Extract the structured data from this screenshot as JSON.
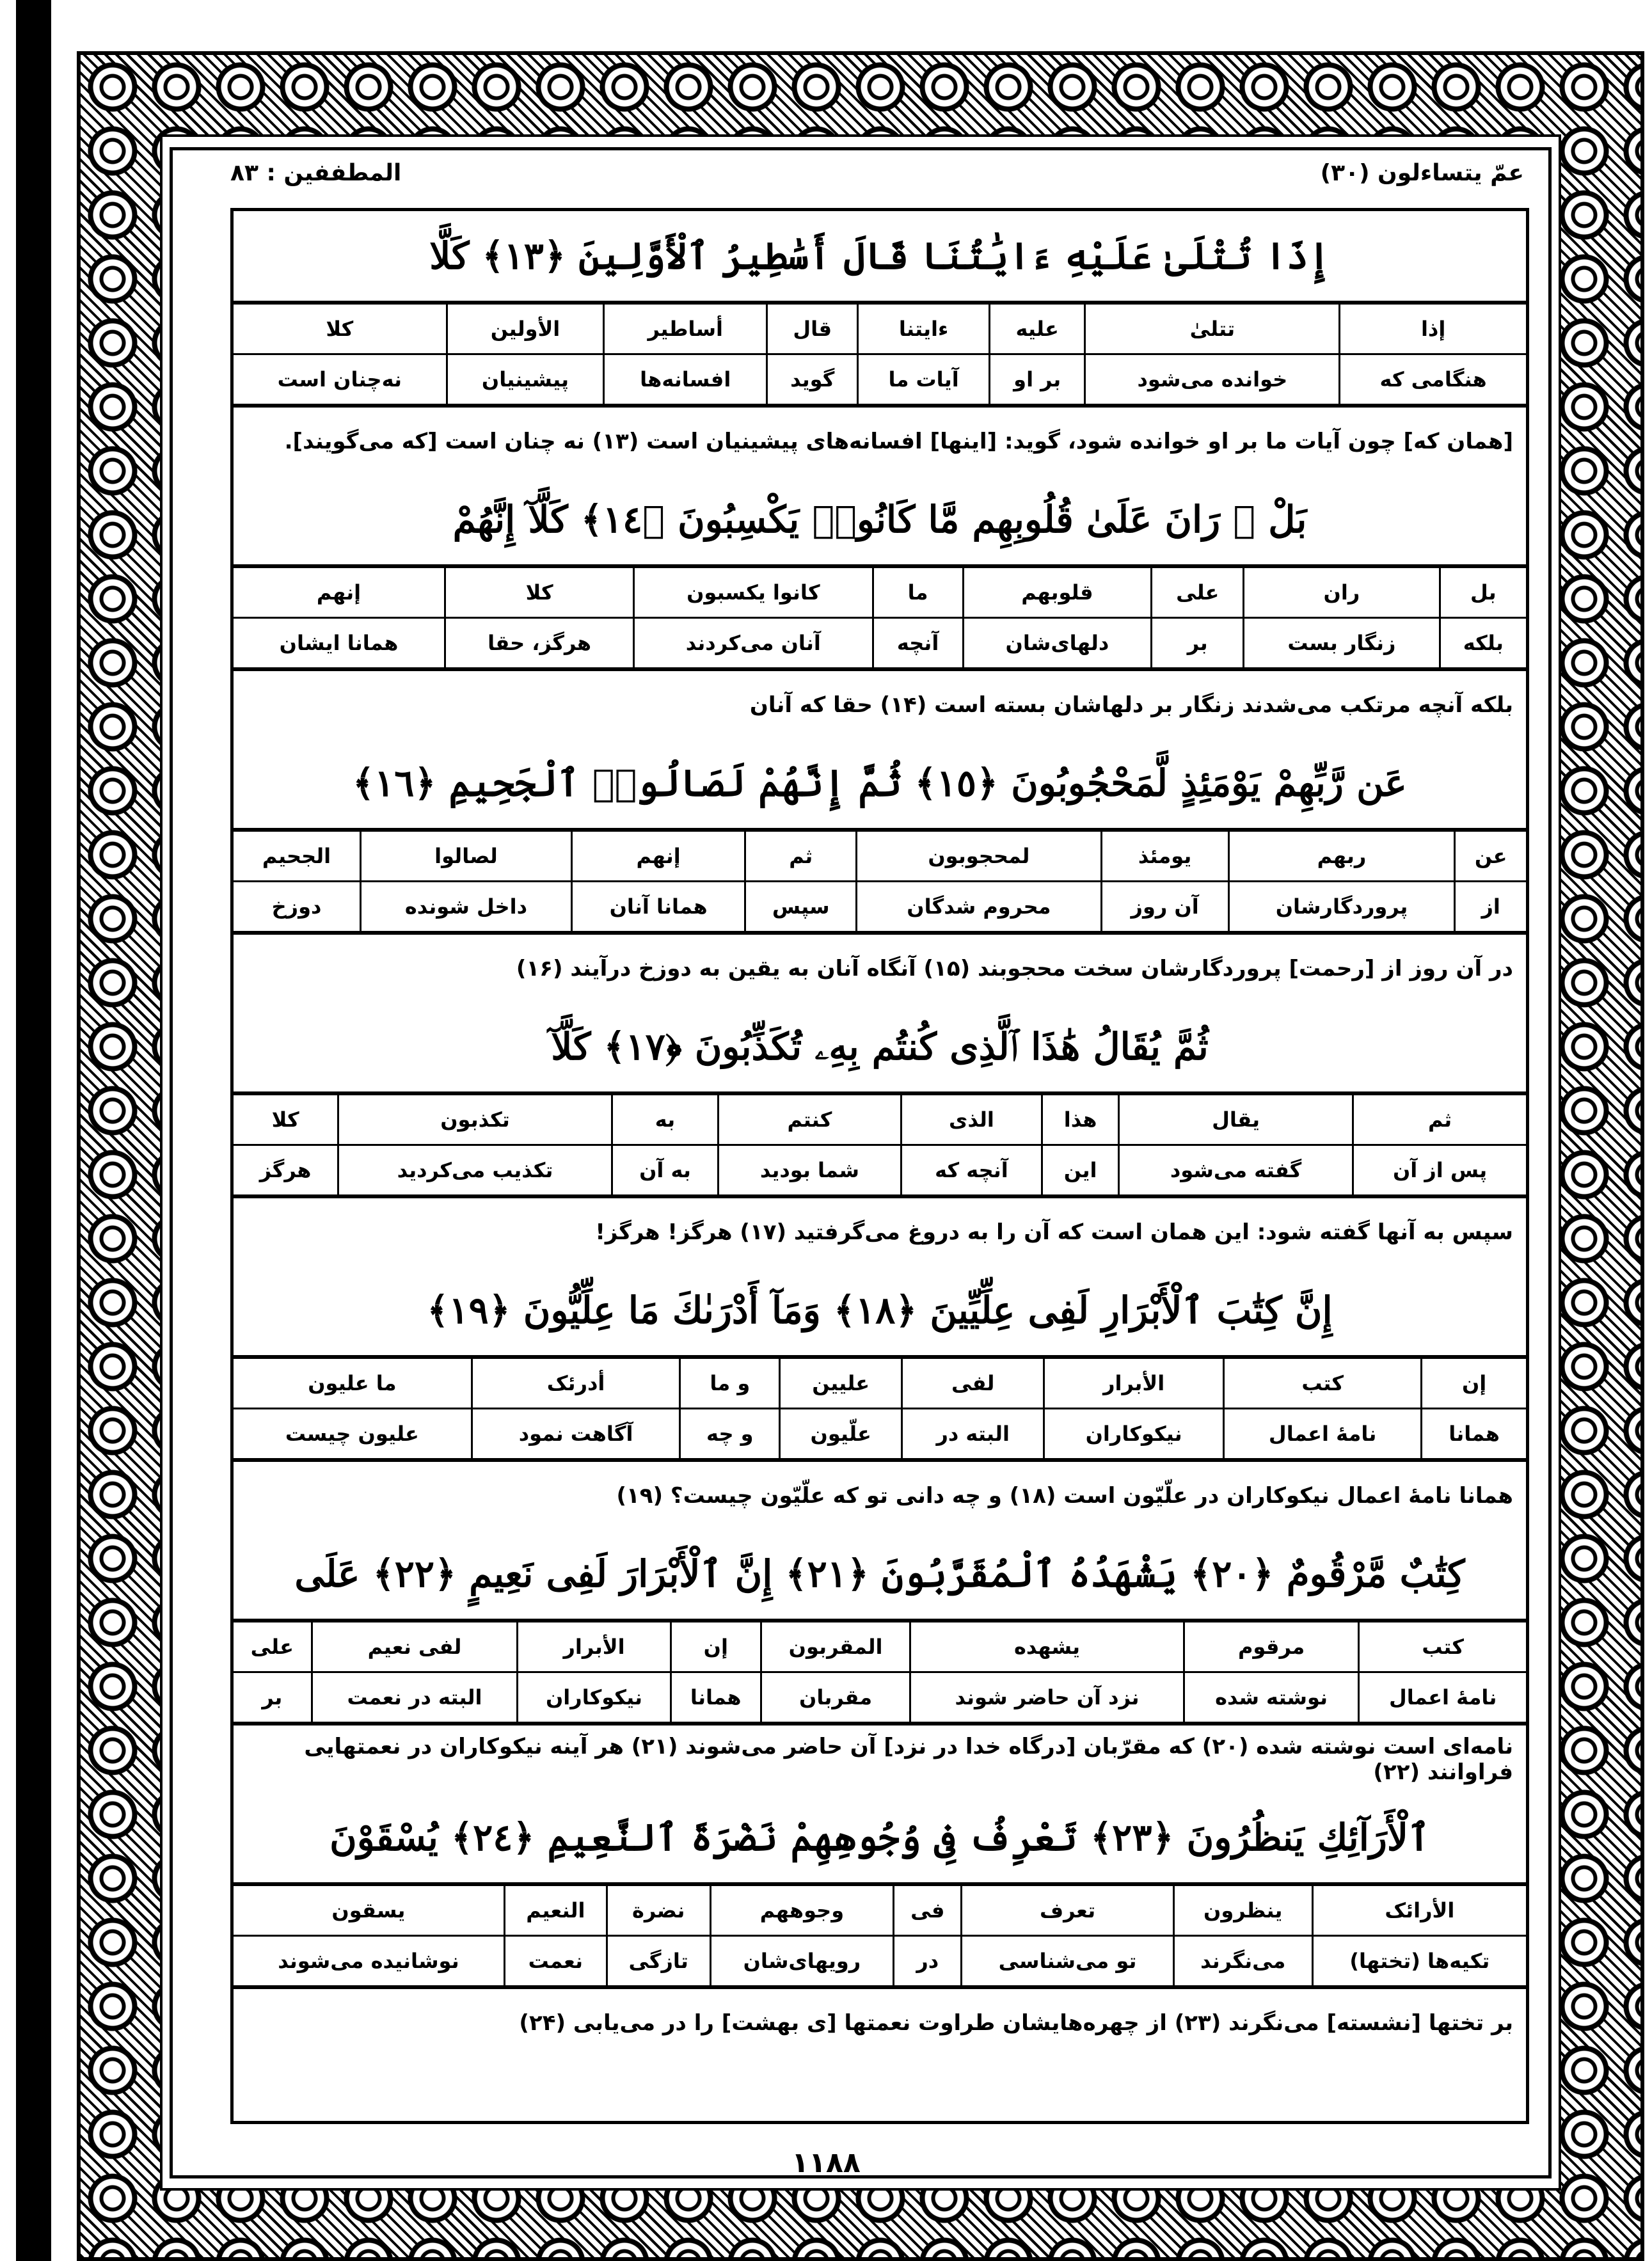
{
  "header": {
    "juz": "عمّ یتساءلون (۳۰)",
    "surah": "المطففین : ۸۳"
  },
  "page_number": "۱۱۸۸",
  "sections": [
    {
      "verse": "إِذَا تُتْلَىٰ عَلَيْهِ ءَايَٰتُنَا قَالَ أَسَٰطِيرُ ٱلْأَوَّلِينَ ﴿١٣﴾ كَلَّا",
      "words": [
        {
          "ar": "إذا",
          "fa": "هنگامی که"
        },
        {
          "ar": "تتلیٰ",
          "fa": "خوانده می‌شود"
        },
        {
          "ar": "علیه",
          "fa": "بر او"
        },
        {
          "ar": "ءایتنا",
          "fa": "آیات ما"
        },
        {
          "ar": "قال",
          "fa": "گوید"
        },
        {
          "ar": "أساطیر",
          "fa": "افسانه‌ها"
        },
        {
          "ar": "الأولین",
          "fa": "پیشینیان"
        },
        {
          "ar": "کلا",
          "fa": "نه‌چنان است"
        }
      ],
      "translation": "[همان که] چون آیات ما بر او خوانده شود، گوید: [اینها] افسانه‌های پیشینیان است (۱۳) نه چنان است [که می‌گویند]."
    },
    {
      "verse": "بَلْ ۜ رَانَ عَلَىٰ قُلُوبِهِم مَّا كَانُوا۟ يَكْسِبُونَ ﴿١٤﴾ كَلَّآ إِنَّهُمْ",
      "words": [
        {
          "ar": "بل",
          "fa": "بلکه"
        },
        {
          "ar": "ران",
          "fa": "زنگار بست"
        },
        {
          "ar": "علی",
          "fa": "بر"
        },
        {
          "ar": "قلوبهم",
          "fa": "دلهای‌شان"
        },
        {
          "ar": "ما",
          "fa": "آنچه"
        },
        {
          "ar": "کانوا یکسبون",
          "fa": "آنان می‌کردند"
        },
        {
          "ar": "کلا",
          "fa": "هرگز، حقا"
        },
        {
          "ar": "إنهم",
          "fa": "همانا ایشان"
        }
      ],
      "translation": "بلکه آنچه مرتکب می‌شدند زنگار بر دلهاشان بسته است (۱۴) حقا که آنان"
    },
    {
      "verse": "عَن رَّبِّهِمْ يَوْمَئِذٍ لَّمَحْجُوبُونَ ﴿١٥﴾ ثُمَّ إِنَّهُمْ لَصَالُوا۟ ٱلْجَحِيمِ ﴿١٦﴾",
      "words": [
        {
          "ar": "عن",
          "fa": "از"
        },
        {
          "ar": "ربهم",
          "fa": "پروردگارشان"
        },
        {
          "ar": "یومئذ",
          "fa": "آن روز"
        },
        {
          "ar": "لمحجوبون",
          "fa": "محروم شدگان"
        },
        {
          "ar": "ثم",
          "fa": "سپس"
        },
        {
          "ar": "إنهم",
          "fa": "همانا آنان"
        },
        {
          "ar": "لصالوا",
          "fa": "داخل شونده"
        },
        {
          "ar": "الجحیم",
          "fa": "دوزخ"
        }
      ],
      "translation": "در آن روز از [رحمت] پروردگارشان سخت محجوبند (۱۵) آنگاه آنان به یقین به دوزخ درآیند (۱۶)"
    },
    {
      "verse": "ثُمَّ يُقَالُ هَٰذَا ٱلَّذِى كُنتُم بِهِۦ تُكَذِّبُونَ ﴿١٧﴾ كَلَّآ",
      "words": [
        {
          "ar": "ثم",
          "fa": "پس از آن"
        },
        {
          "ar": "یقال",
          "fa": "گفته می‌شود"
        },
        {
          "ar": "هذا",
          "fa": "این"
        },
        {
          "ar": "الذی",
          "fa": "آنچه که"
        },
        {
          "ar": "کنتم",
          "fa": "شما بودید"
        },
        {
          "ar": "به",
          "fa": "به آن"
        },
        {
          "ar": "تکذبون",
          "fa": "تکذیب می‌کردید"
        },
        {
          "ar": "کلا",
          "fa": "هرگز"
        }
      ],
      "translation": "سپس به آنها گفته شود: این همان است که آن را به دروغ می‌گرفتید (۱۷) هرگز! هرگز!"
    },
    {
      "verse": "إِنَّ كِتَٰبَ ٱلْأَبْرَارِ لَفِى عِلِّيِّينَ ﴿١٨﴾ وَمَآ أَدْرَىٰكَ مَا عِلِّيُّونَ ﴿١٩﴾",
      "words": [
        {
          "ar": "إن",
          "fa": "همانا"
        },
        {
          "ar": "کتب",
          "fa": "نامهٔ اعمال"
        },
        {
          "ar": "الأبرار",
          "fa": "نیکوکاران"
        },
        {
          "ar": "لفی",
          "fa": "البته در"
        },
        {
          "ar": "علیین",
          "fa": "علّیون"
        },
        {
          "ar": "و ما",
          "fa": "و چه"
        },
        {
          "ar": "أدرئک",
          "fa": "آگاهت نمود"
        },
        {
          "ar": "ما علیون",
          "fa": "علیون چیست"
        }
      ],
      "translation": "همانا نامهٔ اعمال نیکوکاران در علّیّون است (۱۸) و چه دانی تو که علّیّون چیست؟ (۱۹)"
    },
    {
      "verse": "كِتَٰبٌ مَّرْقُومٌ ﴿٢٠﴾ يَشْهَدُهُ ٱلْمُقَرَّبُونَ ﴿٢١﴾ إِنَّ ٱلْأَبْرَارَ لَفِى نَعِيمٍ ﴿٢٢﴾ عَلَى",
      "words": [
        {
          "ar": "کتب",
          "fa": "نامهٔ اعمال"
        },
        {
          "ar": "مرقوم",
          "fa": "نوشته شده"
        },
        {
          "ar": "یشهده",
          "fa": "نزد آن حاضر شوند"
        },
        {
          "ar": "المقربون",
          "fa": "مقربان"
        },
        {
          "ar": "إن",
          "fa": "همانا"
        },
        {
          "ar": "الأبرار",
          "fa": "نیکوکاران"
        },
        {
          "ar": "لفی نعیم",
          "fa": "البته در نعمت"
        },
        {
          "ar": "علی",
          "fa": "بر"
        }
      ],
      "translation": "نامه‌ای است نوشته شده (۲۰) که مقرّبان [درگاه خدا در نزد] آن حاضر می‌شوند (۲۱) هر آینه نیکوکاران در نعمتهایی فراوانند (۲۲)"
    },
    {
      "verse": "ٱلْأَرَآئِكِ يَنظُرُونَ ﴿٢٣﴾ تَعْرِفُ فِى وُجُوهِهِمْ نَضْرَةَ ٱلنَّعِيمِ ﴿٢٤﴾ يُسْقَوْنَ",
      "words": [
        {
          "ar": "الأرائک",
          "fa": "تکیه‌ها (تختها)"
        },
        {
          "ar": "ینظرون",
          "fa": "می‌نگرند"
        },
        {
          "ar": "تعرف",
          "fa": "تو می‌شناسی"
        },
        {
          "ar": "فی",
          "fa": "در"
        },
        {
          "ar": "وجوههم",
          "fa": "رویهای‌شان"
        },
        {
          "ar": "نضرة",
          "fa": "تازگی"
        },
        {
          "ar": "النعیم",
          "fa": "نعمت"
        },
        {
          "ar": "یسقون",
          "fa": "نوشانیده می‌شوند"
        }
      ],
      "translation": "بر تختها [نشسته] می‌نگرند (۲۳) از چهره‌هایشان طراوت نعمتها [ی بهشت] را در می‌یابی (۲۴)"
    }
  ]
}
